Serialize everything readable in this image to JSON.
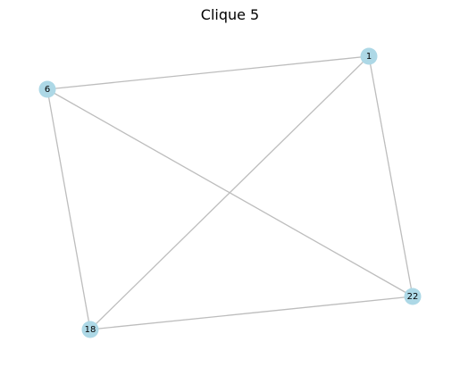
{
  "title": "Clique 5",
  "colors": {
    "node_fill": "#add8e6",
    "edge_stroke": "#bdbdbd",
    "label": "#000000",
    "background": "#ffffff"
  },
  "nodes": [
    {
      "id": "1",
      "label": "1"
    },
    {
      "id": "6",
      "label": "6"
    },
    {
      "id": "18",
      "label": "18"
    },
    {
      "id": "22",
      "label": "22"
    }
  ],
  "edges": [
    {
      "source": "1",
      "target": "6"
    },
    {
      "source": "1",
      "target": "18"
    },
    {
      "source": "1",
      "target": "22"
    },
    {
      "source": "6",
      "target": "18"
    },
    {
      "source": "6",
      "target": "22"
    },
    {
      "source": "18",
      "target": "22"
    }
  ]
}
